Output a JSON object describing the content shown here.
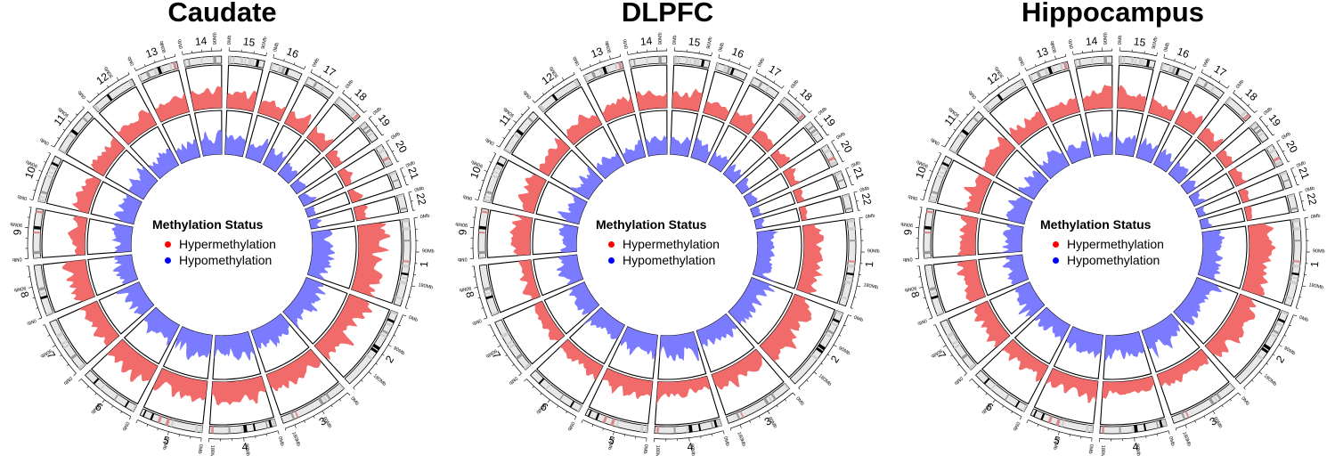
{
  "chart_data": [
    {
      "type": "circos",
      "title": "Caudate",
      "legend_title": "Methylation Status",
      "legend": [
        {
          "label": "Hypermethylation",
          "color": "#ff0000"
        },
        {
          "label": "Hypomethylation",
          "color": "#0000ff"
        }
      ],
      "chromosomes": [
        "1",
        "2",
        "3",
        "4",
        "5",
        "6",
        "7",
        "8",
        "9",
        "10",
        "11",
        "12",
        "13",
        "14",
        "15",
        "16",
        "17",
        "18",
        "19",
        "20",
        "21",
        "22"
      ],
      "hyper_peaks": [
        0.95,
        0.9,
        0.8,
        0.85,
        0.9,
        0.9,
        0.7,
        0.8,
        0.55,
        0.65,
        0.7,
        0.75,
        0.7,
        0.8,
        0.75,
        0.6,
        0.7,
        0.6,
        0.5,
        0.45,
        0.4,
        0.5
      ],
      "hypo_peaks": [
        0.85,
        0.9,
        0.85,
        0.95,
        0.9,
        0.8,
        0.75,
        0.8,
        0.75,
        0.7,
        0.8,
        0.75,
        0.7,
        0.85,
        0.8,
        0.7,
        0.75,
        0.6,
        0.55,
        0.45,
        0.35,
        0.4
      ]
    },
    {
      "type": "circos",
      "title": "DLPFC",
      "legend_title": "Methylation Status",
      "legend": [
        {
          "label": "Hypermethylation",
          "color": "#ff0000"
        },
        {
          "label": "Hypomethylation",
          "color": "#0000ff"
        }
      ],
      "chromosomes": [
        "1",
        "2",
        "3",
        "4",
        "5",
        "6",
        "7",
        "8",
        "9",
        "10",
        "11",
        "12",
        "13",
        "14",
        "15",
        "16",
        "17",
        "18",
        "19",
        "20",
        "21",
        "22"
      ],
      "hyper_peaks": [
        0.75,
        0.85,
        0.7,
        0.6,
        0.75,
        0.55,
        0.45,
        0.5,
        0.7,
        0.65,
        0.6,
        0.65,
        0.7,
        0.75,
        0.7,
        0.55,
        0.6,
        0.5,
        0.5,
        0.4,
        0.35,
        0.3
      ],
      "hypo_peaks": [
        0.7,
        0.85,
        0.8,
        0.9,
        0.8,
        0.75,
        0.7,
        0.75,
        0.75,
        0.7,
        0.75,
        0.7,
        0.6,
        0.85,
        0.75,
        0.65,
        0.7,
        0.55,
        0.5,
        0.45,
        0.4,
        0.35
      ]
    },
    {
      "type": "circos",
      "title": "Hippocampus",
      "legend_title": "Methylation Status",
      "legend": [
        {
          "label": "Hypermethylation",
          "color": "#ff0000"
        },
        {
          "label": "Hypomethylation",
          "color": "#0000ff"
        }
      ],
      "chromosomes": [
        "1",
        "2",
        "3",
        "4",
        "5",
        "6",
        "7",
        "8",
        "9",
        "10",
        "11",
        "12",
        "13",
        "14",
        "15",
        "16",
        "17",
        "18",
        "19",
        "20",
        "21",
        "22"
      ],
      "hyper_peaks": [
        0.95,
        0.8,
        0.6,
        0.55,
        0.75,
        0.7,
        0.75,
        0.8,
        0.65,
        0.7,
        0.75,
        0.7,
        0.65,
        0.8,
        0.7,
        0.6,
        0.7,
        0.55,
        0.45,
        0.45,
        0.35,
        0.3
      ],
      "hypo_peaks": [
        0.75,
        0.85,
        0.85,
        0.9,
        0.85,
        0.75,
        0.75,
        0.8,
        0.75,
        0.7,
        0.7,
        0.8,
        0.65,
        0.85,
        0.8,
        0.7,
        0.75,
        0.6,
        0.5,
        0.45,
        0.4,
        0.35
      ]
    }
  ],
  "colors": {
    "hyper_fill": "#f26b6b",
    "hypo_fill": "#7b7bff",
    "band_dark": "#000000",
    "band_mid": "#9a9a9a",
    "band_light": "#e8e8e8",
    "band_red": "#d98a8a"
  },
  "ideogram_tick_labels": [
    "0Mb",
    "90Mb",
    "180Mb"
  ]
}
